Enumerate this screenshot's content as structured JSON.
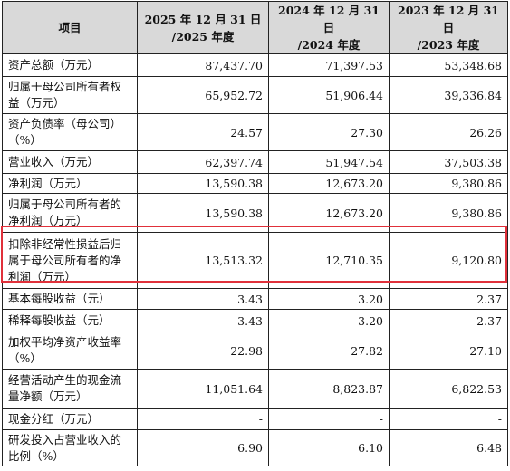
{
  "header": {
    "item": "项目",
    "col1": "2025 年 12 月 31 日\n/2025 年度",
    "col2": "2024 年 12 月 31 日\n/2024 年度",
    "col3": "2023 年 12 月 31 日\n/2023 年度"
  },
  "rows": [
    {
      "label": "资产总额（万元）",
      "v1": "87,437.70",
      "v2": "71,397.53",
      "v3": "53,348.68"
    },
    {
      "label": "归属于母公司所有者权益（万元）",
      "v1": "65,952.72",
      "v2": "51,906.44",
      "v3": "39,336.84"
    },
    {
      "label": "资产负债率（母公司）（%）",
      "v1": "24.57",
      "v2": "27.30",
      "v3": "26.26"
    },
    {
      "label": "营业收入（万元）",
      "v1": "62,397.74",
      "v2": "51,947.54",
      "v3": "37,503.38"
    },
    {
      "label": "净利润（万元）",
      "v1": "13,590.38",
      "v2": "12,673.20",
      "v3": "9,380.86"
    },
    {
      "label": "归属于母公司所有者的净利润（万元）",
      "v1": "13,590.38",
      "v2": "12,673.20",
      "v3": "9,380.86"
    },
    {
      "label": "扣除非经常性损益后归属于母公司所有者的净利润（万元）",
      "v1": "13,513.32",
      "v2": "12,710.35",
      "v3": "9,120.80"
    },
    {
      "label": "基本每股收益（元）",
      "v1": "3.43",
      "v2": "3.20",
      "v3": "2.37"
    },
    {
      "label": "稀释每股收益（元）",
      "v1": "3.43",
      "v2": "3.20",
      "v3": "2.37"
    },
    {
      "label": "加权平均净资产收益率（%）",
      "v1": "22.98",
      "v2": "27.82",
      "v3": "27.10"
    },
    {
      "label": "经营活动产生的现金流量净额（万元）",
      "v1": "11,051.64",
      "v2": "8,823.87",
      "v3": "6,822.53"
    },
    {
      "label": "现金分红（万元）",
      "v1": "-",
      "v2": "-",
      "v3": "-"
    },
    {
      "label": "研发投入占营业收入的比例（%）",
      "v1": "6.90",
      "v2": "6.10",
      "v3": "6.48"
    }
  ],
  "highlight": {
    "row_index": 6,
    "color": "#e0303a"
  },
  "colors": {
    "header_bg": "#d9d9d9",
    "border": "#222222"
  }
}
